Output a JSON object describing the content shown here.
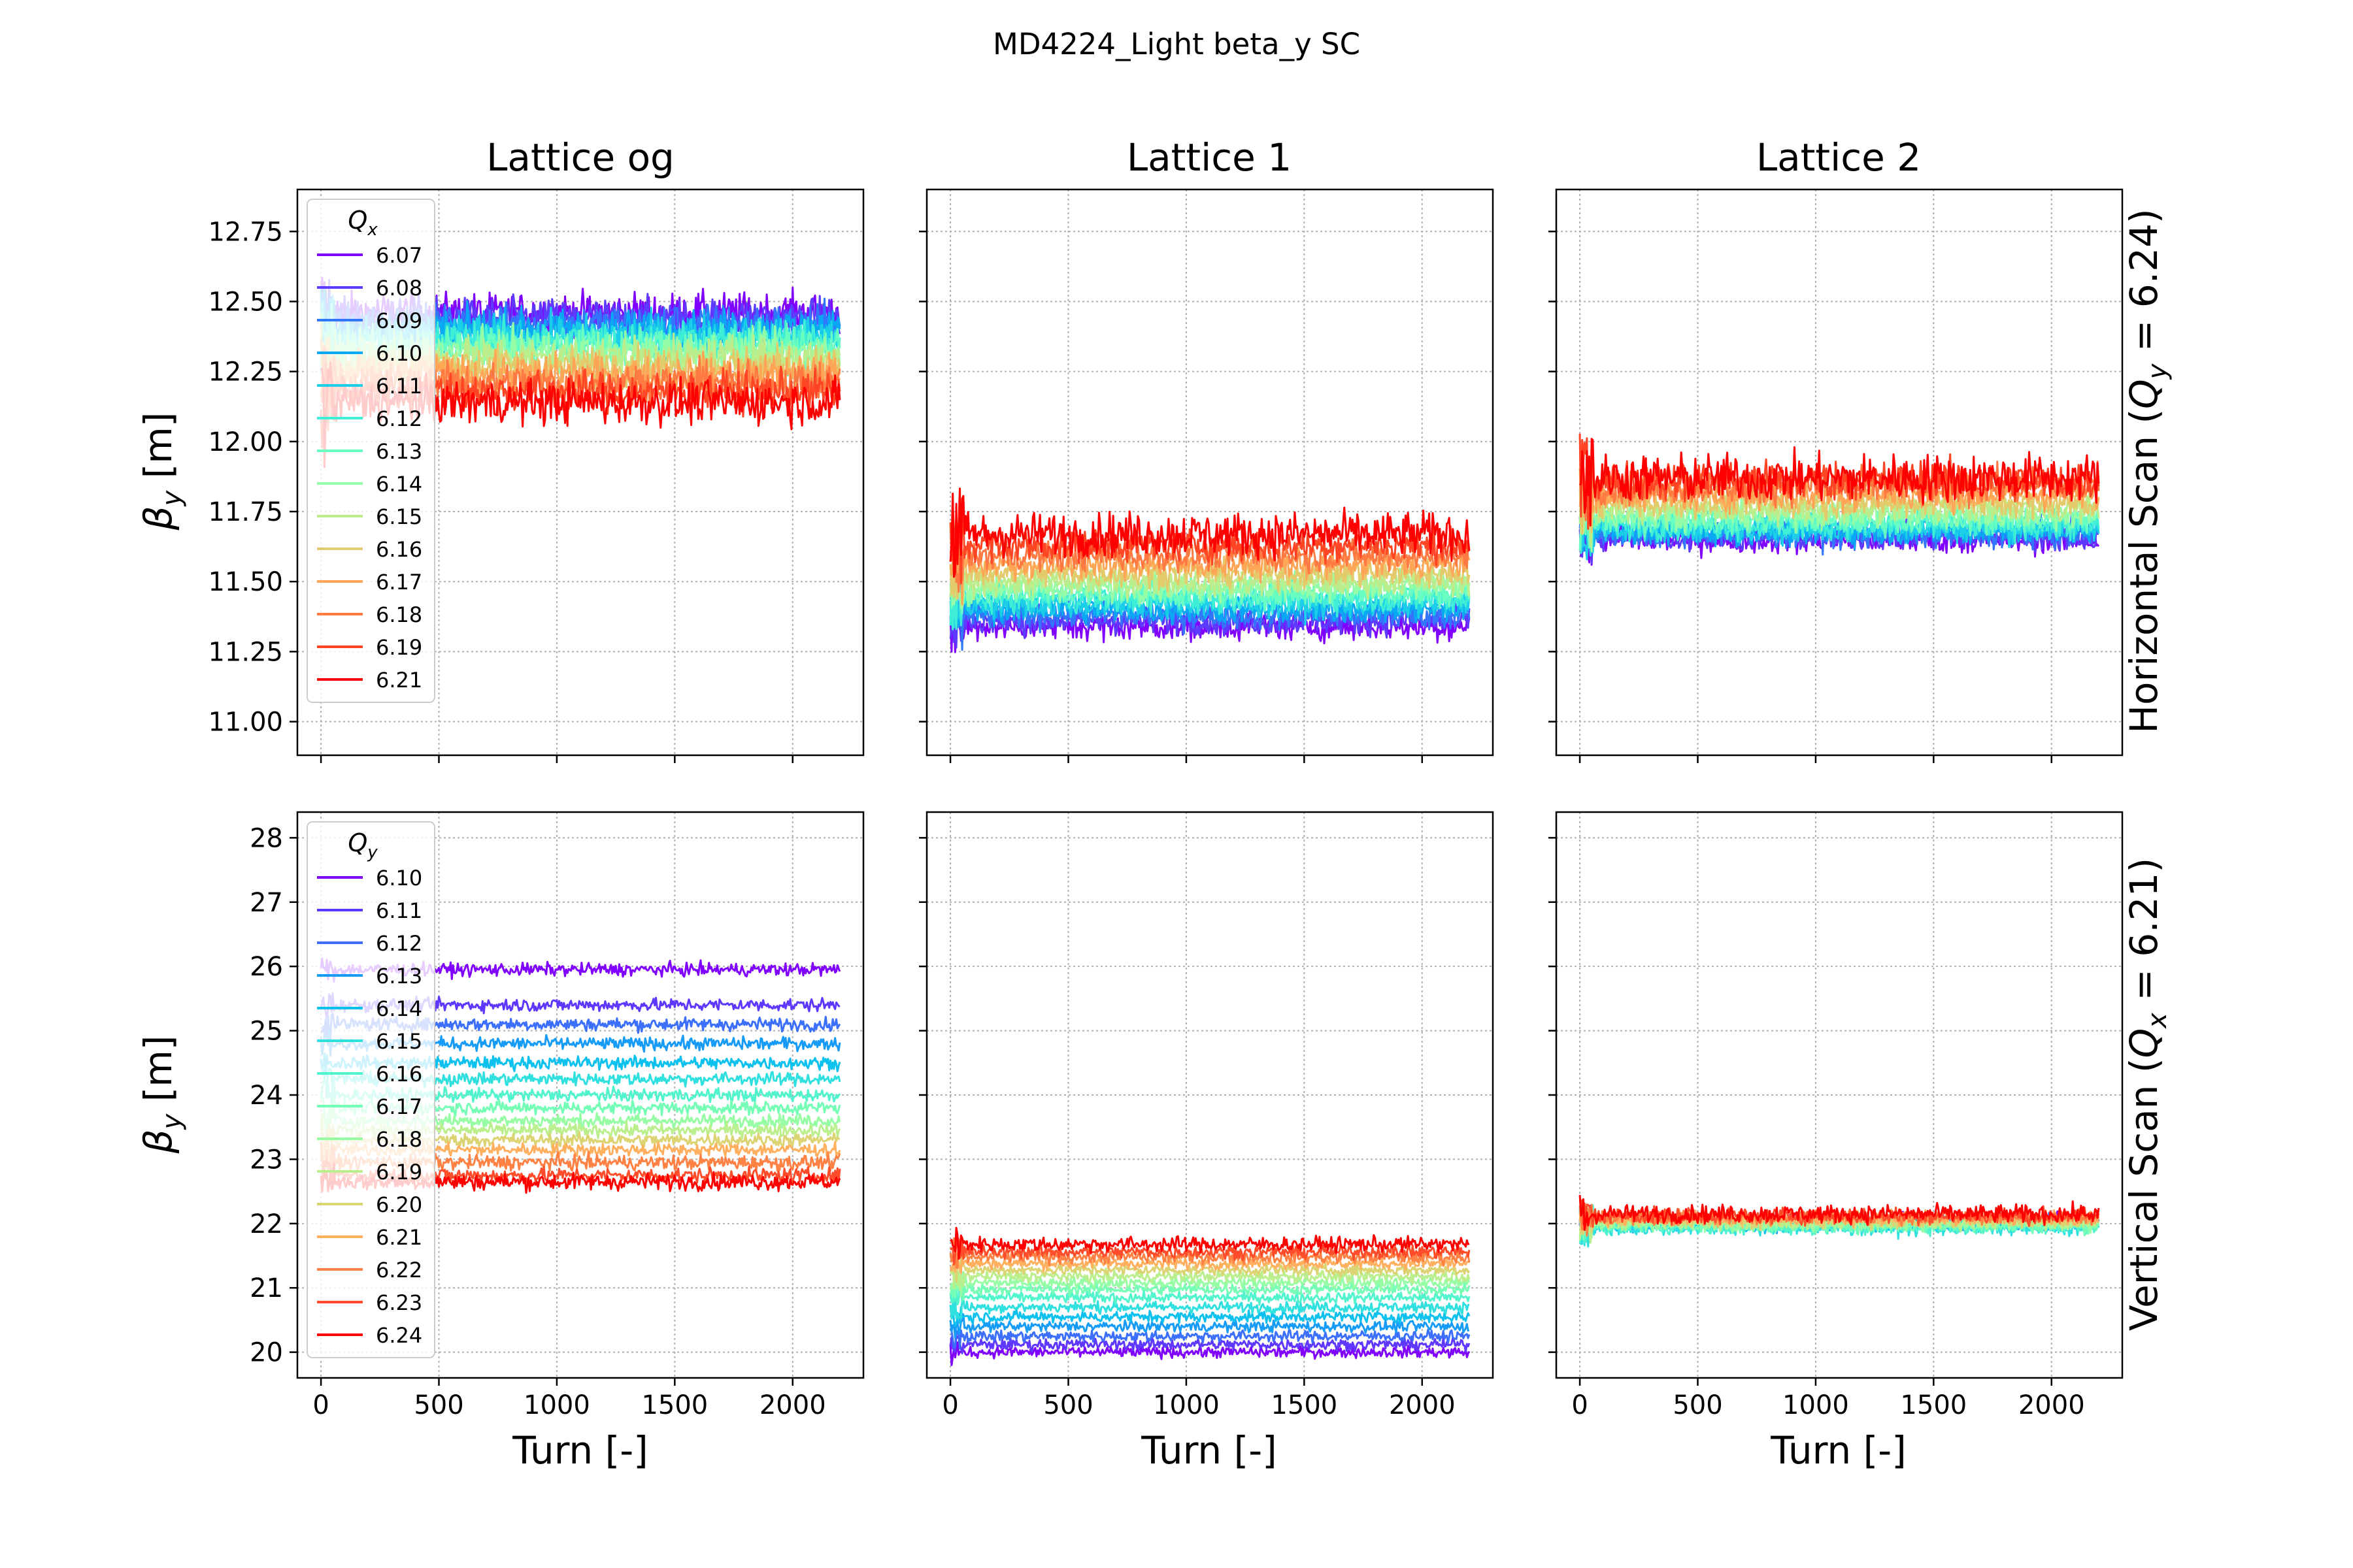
{
  "figure": {
    "title": "MD4224_Light beta_y SC",
    "columns": [
      "Lattice og",
      "Lattice 1",
      "Lattice 2"
    ],
    "rows": [
      {
        "label_pre": "Horizontal Scan (",
        "label_var": "Q",
        "label_sub": "y",
        "label_post": " = 6.24)"
      },
      {
        "label_pre": "Vertical Scan (",
        "label_var": "Q",
        "label_sub": "x",
        "label_post": " = 6.21)"
      }
    ],
    "ylabel_var": "β",
    "ylabel_sub": "y",
    "ylabel_unit": " [m]",
    "xlabel": "Turn [-]"
  },
  "chart_data": [
    {
      "type": "line",
      "row": 0,
      "col": 0,
      "xlim": [
        -100,
        2300
      ],
      "ylim": [
        10.88,
        12.9
      ],
      "xticks": [
        0,
        500,
        1000,
        1500,
        2000
      ],
      "yticks": [
        11.0,
        11.25,
        11.5,
        11.75,
        12.0,
        12.25,
        12.5,
        12.75
      ],
      "ytick_labels": [
        "11.00",
        "11.25",
        "11.50",
        "11.75",
        "12.00",
        "12.25",
        "12.50",
        "12.75"
      ],
      "grid": true,
      "legend": {
        "title_var": "Q",
        "title_sub": "x",
        "placement": "upper-left"
      },
      "series": [
        {
          "name": "6.07",
          "color": "#8000ff",
          "mean": 12.46,
          "noise": 0.05
        },
        {
          "name": "6.08",
          "color": "#5c3bfe",
          "mean": 12.44,
          "noise": 0.05
        },
        {
          "name": "6.09",
          "color": "#3277fb",
          "mean": 12.42,
          "noise": 0.05
        },
        {
          "name": "6.10",
          "color": "#09a8f3",
          "mean": 12.4,
          "noise": 0.05
        },
        {
          "name": "6.11",
          "color": "#1ccfe8",
          "mean": 12.38,
          "noise": 0.05
        },
        {
          "name": "6.12",
          "color": "#3eeed6",
          "mean": 12.36,
          "noise": 0.05
        },
        {
          "name": "6.13",
          "color": "#68fdc1",
          "mean": 12.34,
          "noise": 0.05
        },
        {
          "name": "6.14",
          "color": "#96fda6",
          "mean": 12.32,
          "noise": 0.05
        },
        {
          "name": "6.15",
          "color": "#bdec8a",
          "mean": 12.3,
          "noise": 0.05
        },
        {
          "name": "6.16",
          "color": "#e3cb6b",
          "mean": 12.27,
          "noise": 0.05
        },
        {
          "name": "6.17",
          "color": "#ffa656",
          "mean": 12.24,
          "noise": 0.05
        },
        {
          "name": "6.18",
          "color": "#ff7a42",
          "mean": 12.21,
          "noise": 0.05
        },
        {
          "name": "6.19",
          "color": "#ff4523",
          "mean": 12.18,
          "noise": 0.05
        },
        {
          "name": "6.21",
          "color": "#ff0000",
          "mean": 12.14,
          "noise": 0.055
        }
      ]
    },
    {
      "type": "line",
      "row": 0,
      "col": 1,
      "xlim": [
        -100,
        2300
      ],
      "ylim": [
        10.88,
        12.9
      ],
      "xticks": [
        0,
        500,
        1000,
        1500,
        2000
      ],
      "yticks": [
        11.0,
        11.25,
        11.5,
        11.75,
        12.0,
        12.25,
        12.5,
        12.75
      ],
      "grid": true,
      "series": [
        {
          "name": "6.07",
          "color": "#8000ff",
          "mean": 11.34,
          "noise": 0.035
        },
        {
          "name": "6.08",
          "color": "#5c3bfe",
          "mean": 11.36,
          "noise": 0.035
        },
        {
          "name": "6.09",
          "color": "#3277fb",
          "mean": 11.38,
          "noise": 0.035
        },
        {
          "name": "6.10",
          "color": "#09a8f3",
          "mean": 11.4,
          "noise": 0.035
        },
        {
          "name": "6.11",
          "color": "#1ccfe8",
          "mean": 11.42,
          "noise": 0.035
        },
        {
          "name": "6.12",
          "color": "#3eeed6",
          "mean": 11.44,
          "noise": 0.035
        },
        {
          "name": "6.13",
          "color": "#68fdc1",
          "mean": 11.46,
          "noise": 0.035
        },
        {
          "name": "6.14",
          "color": "#96fda6",
          "mean": 11.48,
          "noise": 0.035
        },
        {
          "name": "6.15",
          "color": "#bdec8a",
          "mean": 11.5,
          "noise": 0.035
        },
        {
          "name": "6.16",
          "color": "#e3cb6b",
          "mean": 11.53,
          "noise": 0.035
        },
        {
          "name": "6.17",
          "color": "#ffa656",
          "mean": 11.56,
          "noise": 0.035
        },
        {
          "name": "6.18",
          "color": "#ff7a42",
          "mean": 11.59,
          "noise": 0.035
        },
        {
          "name": "6.19",
          "color": "#ff4523",
          "mean": 11.63,
          "noise": 0.04
        },
        {
          "name": "6.21",
          "color": "#ff0000",
          "mean": 11.67,
          "noise": 0.055
        }
      ]
    },
    {
      "type": "line",
      "row": 0,
      "col": 2,
      "xlim": [
        -100,
        2300
      ],
      "ylim": [
        10.88,
        12.9
      ],
      "xticks": [
        0,
        500,
        1000,
        1500,
        2000
      ],
      "yticks": [
        11.0,
        11.25,
        11.5,
        11.75,
        12.0,
        12.25,
        12.5,
        12.75
      ],
      "grid": true,
      "series": [
        {
          "name": "6.07",
          "color": "#8000ff",
          "mean": 11.65,
          "noise": 0.035
        },
        {
          "name": "6.08",
          "color": "#5c3bfe",
          "mean": 11.66,
          "noise": 0.035
        },
        {
          "name": "6.09",
          "color": "#3277fb",
          "mean": 11.67,
          "noise": 0.035
        },
        {
          "name": "6.10",
          "color": "#09a8f3",
          "mean": 11.68,
          "noise": 0.035
        },
        {
          "name": "6.11",
          "color": "#1ccfe8",
          "mean": 11.69,
          "noise": 0.035
        },
        {
          "name": "6.12",
          "color": "#3eeed6",
          "mean": 11.7,
          "noise": 0.035
        },
        {
          "name": "6.13",
          "color": "#68fdc1",
          "mean": 11.72,
          "noise": 0.035
        },
        {
          "name": "6.14",
          "color": "#96fda6",
          "mean": 11.74,
          "noise": 0.035
        },
        {
          "name": "6.15",
          "color": "#bdec8a",
          "mean": 11.76,
          "noise": 0.035
        },
        {
          "name": "6.16",
          "color": "#e3cb6b",
          "mean": 11.78,
          "noise": 0.035
        },
        {
          "name": "6.17",
          "color": "#ffa656",
          "mean": 11.81,
          "noise": 0.04
        },
        {
          "name": "6.18",
          "color": "#ff7a42",
          "mean": 11.84,
          "noise": 0.045
        },
        {
          "name": "6.19",
          "color": "#ff4523",
          "mean": 11.86,
          "noise": 0.05
        },
        {
          "name": "6.21",
          "color": "#ff0000",
          "mean": 11.87,
          "noise": 0.06
        }
      ]
    },
    {
      "type": "line",
      "row": 1,
      "col": 0,
      "xlim": [
        -100,
        2300
      ],
      "ylim": [
        19.6,
        28.4
      ],
      "xticks": [
        0,
        500,
        1000,
        1500,
        2000
      ],
      "yticks": [
        20,
        21,
        22,
        23,
        24,
        25,
        26,
        27,
        28
      ],
      "grid": true,
      "legend": {
        "title_var": "Q",
        "title_sub": "y",
        "placement": "upper-left"
      },
      "series": [
        {
          "name": "6.10",
          "color": "#8000ff",
          "mean": 25.95,
          "noise": 0.07
        },
        {
          "name": "6.11",
          "color": "#5e38fe",
          "mean": 25.4,
          "noise": 0.07
        },
        {
          "name": "6.12",
          "color": "#3b6ffc",
          "mean": 25.1,
          "noise": 0.07
        },
        {
          "name": "6.13",
          "color": "#169bf7",
          "mean": 24.8,
          "noise": 0.07
        },
        {
          "name": "6.14",
          "color": "#0cc1ed",
          "mean": 24.5,
          "noise": 0.07
        },
        {
          "name": "6.15",
          "color": "#2fe0df",
          "mean": 24.25,
          "noise": 0.07
        },
        {
          "name": "6.16",
          "color": "#51f4cc",
          "mean": 24.0,
          "noise": 0.07
        },
        {
          "name": "6.17",
          "color": "#75feb6",
          "mean": 23.8,
          "noise": 0.07
        },
        {
          "name": "6.18",
          "color": "#97fda5",
          "mean": 23.6,
          "noise": 0.07
        },
        {
          "name": "6.19",
          "color": "#bbef8d",
          "mean": 23.45,
          "noise": 0.07
        },
        {
          "name": "6.20",
          "color": "#dcd372",
          "mean": 23.3,
          "noise": 0.07
        },
        {
          "name": "6.21",
          "color": "#ffaf5e",
          "mean": 23.15,
          "noise": 0.07
        },
        {
          "name": "6.22",
          "color": "#ff8244",
          "mean": 22.95,
          "noise": 0.08
        },
        {
          "name": "6.23",
          "color": "#ff4d2b",
          "mean": 22.75,
          "noise": 0.08
        },
        {
          "name": "6.24",
          "color": "#ff0000",
          "mean": 22.65,
          "noise": 0.09
        }
      ]
    },
    {
      "type": "line",
      "row": 1,
      "col": 1,
      "xlim": [
        -100,
        2300
      ],
      "ylim": [
        19.6,
        28.4
      ],
      "xticks": [
        0,
        500,
        1000,
        1500,
        2000
      ],
      "yticks": [
        20,
        21,
        22,
        23,
        24,
        25,
        26,
        27,
        28
      ],
      "grid": true,
      "series": [
        {
          "name": "6.10",
          "color": "#8000ff",
          "mean": 20.0,
          "noise": 0.06
        },
        {
          "name": "6.11",
          "color": "#5e38fe",
          "mean": 20.12,
          "noise": 0.06
        },
        {
          "name": "6.12",
          "color": "#3b6ffc",
          "mean": 20.25,
          "noise": 0.06
        },
        {
          "name": "6.13",
          "color": "#169bf7",
          "mean": 20.4,
          "noise": 0.06
        },
        {
          "name": "6.14",
          "color": "#0cc1ed",
          "mean": 20.55,
          "noise": 0.06
        },
        {
          "name": "6.15",
          "color": "#2fe0df",
          "mean": 20.7,
          "noise": 0.06
        },
        {
          "name": "6.16",
          "color": "#51f4cc",
          "mean": 20.85,
          "noise": 0.06
        },
        {
          "name": "6.17",
          "color": "#75feb6",
          "mean": 20.98,
          "noise": 0.06
        },
        {
          "name": "6.18",
          "color": "#97fda5",
          "mean": 21.08,
          "noise": 0.06
        },
        {
          "name": "6.19",
          "color": "#bbef8d",
          "mean": 21.18,
          "noise": 0.06
        },
        {
          "name": "6.20",
          "color": "#dcd372",
          "mean": 21.28,
          "noise": 0.06
        },
        {
          "name": "6.21",
          "color": "#ffaf5e",
          "mean": 21.38,
          "noise": 0.06
        },
        {
          "name": "6.22",
          "color": "#ff8244",
          "mean": 21.48,
          "noise": 0.07
        },
        {
          "name": "6.23",
          "color": "#ff4d2b",
          "mean": 21.56,
          "noise": 0.07
        },
        {
          "name": "6.24",
          "color": "#ff0000",
          "mean": 21.68,
          "noise": 0.08
        }
      ]
    },
    {
      "type": "line",
      "row": 1,
      "col": 2,
      "xlim": [
        -100,
        2300
      ],
      "ylim": [
        19.6,
        28.4
      ],
      "xticks": [
        0,
        500,
        1000,
        1500,
        2000
      ],
      "yticks": [
        20,
        21,
        22,
        23,
        24,
        25,
        26,
        27,
        28
      ],
      "grid": true,
      "series": [
        {
          "name": "6.10",
          "color": "#8000ff",
          "mean": 22.05,
          "noise": 0.08
        },
        {
          "name": "6.11",
          "color": "#5e38fe",
          "mean": 22.04,
          "noise": 0.08
        },
        {
          "name": "6.12",
          "color": "#3b6ffc",
          "mean": 22.03,
          "noise": 0.08
        },
        {
          "name": "6.13",
          "color": "#169bf7",
          "mean": 22.0,
          "noise": 0.08
        },
        {
          "name": "6.14",
          "color": "#0cc1ed",
          "mean": 21.97,
          "noise": 0.08
        },
        {
          "name": "6.15",
          "color": "#2fe0df",
          "mean": 21.93,
          "noise": 0.08
        },
        {
          "name": "6.16",
          "color": "#51f4cc",
          "mean": 21.95,
          "noise": 0.08
        },
        {
          "name": "6.17",
          "color": "#75feb6",
          "mean": 21.97,
          "noise": 0.08
        },
        {
          "name": "6.18",
          "color": "#97fda5",
          "mean": 22.0,
          "noise": 0.08
        },
        {
          "name": "6.19",
          "color": "#bbef8d",
          "mean": 22.02,
          "noise": 0.08
        },
        {
          "name": "6.20",
          "color": "#dcd372",
          "mean": 22.05,
          "noise": 0.08
        },
        {
          "name": "6.21",
          "color": "#ffaf5e",
          "mean": 22.08,
          "noise": 0.08
        },
        {
          "name": "6.22",
          "color": "#ff8244",
          "mean": 22.1,
          "noise": 0.08
        },
        {
          "name": "6.23",
          "color": "#ff4d2b",
          "mean": 22.12,
          "noise": 0.09
        },
        {
          "name": "6.24",
          "color": "#ff0000",
          "mean": 22.15,
          "noise": 0.1
        }
      ]
    }
  ]
}
